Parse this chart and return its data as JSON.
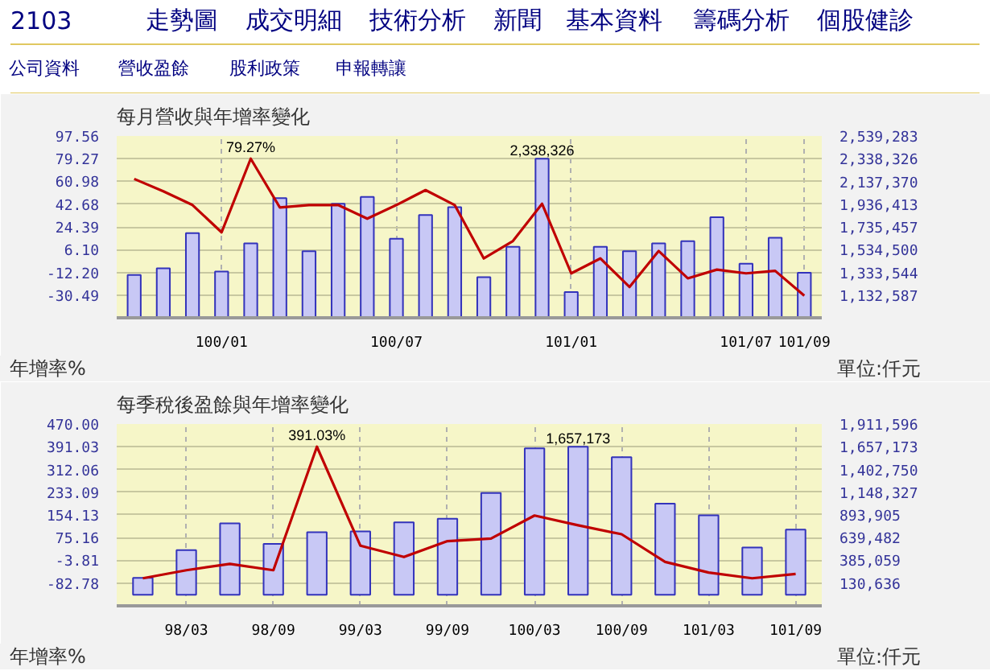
{
  "chart_data": [
    {
      "type": "other",
      "annotations": [
        "2103",
        "走勢圖",
        "成交明細",
        "技術分析",
        "新聞",
        "基本資料",
        "籌碼分析",
        "個股健診",
        "公司資料",
        "營收盈餘",
        "股利政策",
        "申報轉讓"
      ]
    },
    {
      "type": "bar",
      "title": "每月營收與年增率變化",
      "ylabel": "年增率%",
      "y2label": "單位:仟元",
      "grid": true,
      "categories": [
        null,
        null,
        null,
        "100/01",
        null,
        null,
        null,
        null,
        null,
        "100/07",
        null,
        null,
        null,
        null,
        null,
        "101/01",
        null,
        null,
        null,
        null,
        null,
        "101/07",
        null,
        "101/09"
      ],
      "ylim": [
        -48.78,
        97.56
      ],
      "yticks": [
        {
          "value": -30.49,
          "label": "-30.49"
        },
        {
          "value": -12.2,
          "label": "-12.20"
        },
        {
          "value": 6.1,
          "label": "6.10"
        },
        {
          "value": 24.39,
          "label": "24.39"
        },
        {
          "value": 42.68,
          "label": "42.68"
        },
        {
          "value": 60.98,
          "label": "60.98"
        },
        {
          "value": 79.27,
          "label": "79.27"
        },
        {
          "value": 97.56,
          "label": "97.56"
        }
      ],
      "y2lim": [
        931631,
        2539283
      ],
      "y2ticks": [
        {
          "value": 1132587,
          "label": "1,132,587"
        },
        {
          "value": 1333544,
          "label": "1,333,544"
        },
        {
          "value": 1534500,
          "label": "1,534,500"
        },
        {
          "value": 1735457,
          "label": "1,735,457"
        },
        {
          "value": 1936413,
          "label": "1,936,413"
        },
        {
          "value": 2137370,
          "label": "2,137,370"
        },
        {
          "value": 2338326,
          "label": "2,338,326"
        },
        {
          "value": 2539283,
          "label": "2,539,283"
        }
      ],
      "series": [
        {
          "type": "bar",
          "axis": "y2",
          "color": "#c8c8f5",
          "values": [
            1310000,
            1370000,
            1680000,
            1340000,
            1590000,
            1990000,
            1520000,
            1940000,
            2000000,
            1630000,
            1840000,
            1910000,
            1290000,
            1560000,
            2338326,
            1160000,
            1560000,
            1520000,
            1590000,
            1610000,
            1820000,
            1410000,
            1640000,
            1330000
          ],
          "value_labels": [
            null,
            null,
            null,
            null,
            null,
            null,
            null,
            null,
            null,
            null,
            null,
            null,
            null,
            null,
            "2,338,326",
            null,
            null,
            null,
            null,
            null,
            null,
            null,
            null,
            null
          ]
        },
        {
          "type": "line",
          "color": "#c00000",
          "values": [
            63,
            53,
            42,
            20,
            79.27,
            40,
            42,
            42,
            31,
            42,
            54,
            42,
            -1,
            13,
            43,
            -13,
            -1,
            -24,
            5,
            -17,
            -10,
            -13,
            -11,
            -31
          ],
          "value_labels": [
            null,
            null,
            null,
            null,
            "79.27%",
            null,
            null,
            null,
            null,
            null,
            null,
            null,
            null,
            null,
            null,
            null,
            null,
            null,
            null,
            null,
            null,
            null,
            null,
            null
          ]
        }
      ]
    },
    {
      "type": "bar",
      "title": "每季稅後盈餘與年增率變化",
      "ylabel": "年增率%",
      "y2label": "單位:仟元",
      "grid": true,
      "categories": [
        null,
        "98/03",
        null,
        "98/09",
        null,
        "99/03",
        null,
        "99/09",
        null,
        "100/03",
        null,
        "100/09",
        null,
        "101/03",
        null,
        "101/09"
      ],
      "ylim": [
        -161.75,
        470.0
      ],
      "yticks": [
        {
          "value": -82.78,
          "label": "-82.78"
        },
        {
          "value": -3.81,
          "label": "-3.81"
        },
        {
          "value": 75.16,
          "label": "75.16"
        },
        {
          "value": 154.13,
          "label": "154.13"
        },
        {
          "value": 233.09,
          "label": "233.09"
        },
        {
          "value": 312.06,
          "label": "312.06"
        },
        {
          "value": 391.03,
          "label": "391.03"
        },
        {
          "value": 470.0,
          "label": "470.00"
        }
      ],
      "y2lim": [
        -123788,
        1911596
      ],
      "y2ticks": [
        {
          "value": 130636,
          "label": "130,636"
        },
        {
          "value": 385059,
          "label": "385,059"
        },
        {
          "value": 639482,
          "label": "639,482"
        },
        {
          "value": 893905,
          "label": "893,905"
        },
        {
          "value": 1148327,
          "label": "1,148,327"
        },
        {
          "value": 1402750,
          "label": "1,402,750"
        },
        {
          "value": 1657173,
          "label": "1,657,173"
        },
        {
          "value": 1911596,
          "label": "1,911,596"
        }
      ],
      "series": [
        {
          "type": "bar",
          "axis": "y2",
          "color": "#c8c8f5",
          "values": [
            190000,
            500000,
            800000,
            570000,
            700000,
            710000,
            810000,
            850000,
            1140000,
            1640000,
            1657173,
            1540000,
            1020000,
            890000,
            530000,
            730000
          ],
          "value_labels": [
            null,
            null,
            null,
            null,
            null,
            null,
            null,
            null,
            null,
            null,
            "1,657,173",
            null,
            null,
            null,
            null,
            null
          ]
        },
        {
          "type": "line",
          "color": "#c00000",
          "values": [
            -66,
            -38,
            -16,
            -38,
            391.03,
            47,
            8,
            63,
            72,
            152,
            118,
            87,
            -9,
            -46,
            -66,
            -51
          ],
          "value_labels": [
            null,
            null,
            null,
            null,
            "391.03%",
            null,
            null,
            null,
            null,
            null,
            null,
            null,
            null,
            null,
            null,
            null
          ]
        }
      ]
    }
  ]
}
